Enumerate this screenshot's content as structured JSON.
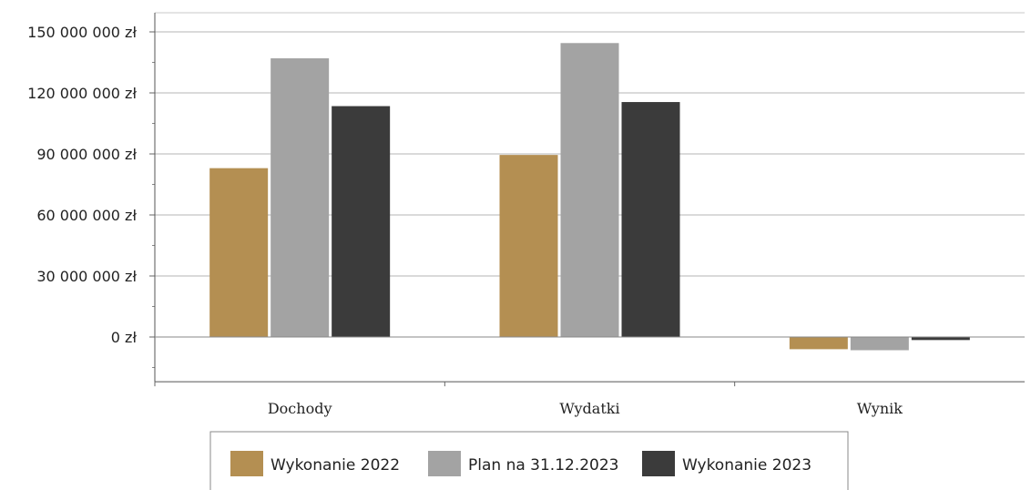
{
  "chart_data": {
    "type": "bar",
    "categories": [
      "Dochody",
      "Wydatki",
      "Wynik"
    ],
    "series": [
      {
        "name": "Wykonanie 2022",
        "color": "#b48f52",
        "values": [
          83000000,
          89500000,
          -6000000
        ]
      },
      {
        "name": "Plan na 31.12.2023",
        "color": "#a3a3a3",
        "values": [
          137000000,
          144500000,
          -6500000
        ]
      },
      {
        "name": "Wykonanie 2023",
        "color": "#3b3b3b",
        "values": [
          113500000,
          115500000,
          -1500000
        ]
      }
    ],
    "y_ticks": [
      {
        "value": 150000000,
        "label": "150 000 000 zł"
      },
      {
        "value": 120000000,
        "label": "120 000 000 zł"
      },
      {
        "value": 90000000,
        "label": "90 000 000 zł"
      },
      {
        "value": 60000000,
        "label": "60 000 000 zł"
      },
      {
        "value": 30000000,
        "label": "30 000 000 zł"
      },
      {
        "value": 0,
        "label": "0 zł"
      }
    ],
    "ylim": [
      -22000000,
      160000000
    ],
    "grid": true,
    "legend_position": "bottom"
  }
}
